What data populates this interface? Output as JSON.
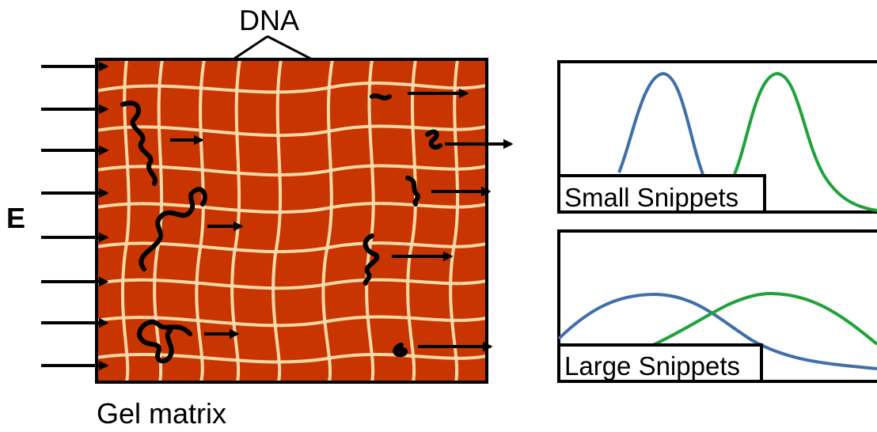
{
  "labels": {
    "dna": "DNA",
    "field": "E",
    "gel": "Gel matrix",
    "small_panel": "Small Snippets",
    "large_panel": "Large Snippets"
  },
  "colors": {
    "gel_fill": "#c93500",
    "gel_mesh": "#f6d9a8",
    "dna_strand": "#000000",
    "peak_blue": "#3f6fa8",
    "peak_green": "#1fa23a",
    "outline": "#000000"
  },
  "icons": {
    "field_arrows": "arrow-right-icon",
    "dna_arrows": "arrow-right-icon"
  }
}
